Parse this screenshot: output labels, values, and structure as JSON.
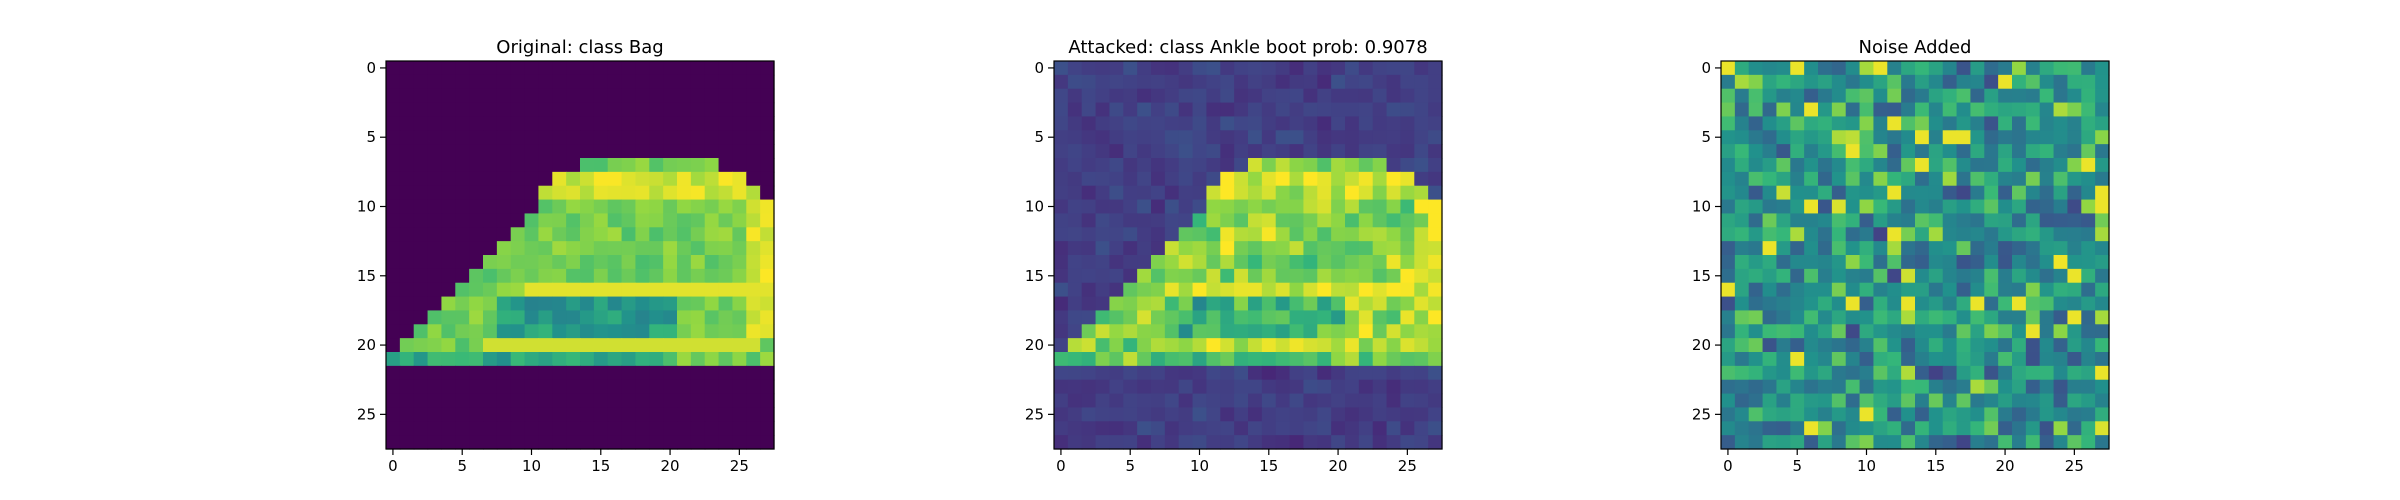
{
  "chart_data": [
    {
      "type": "heatmap",
      "title": "Original: class Bag",
      "image_shape": [
        28,
        28
      ],
      "colormap": "viridis",
      "xlim": [
        -0.5,
        27.5
      ],
      "ylim": [
        27.5,
        -0.5
      ],
      "x_ticks": [
        0,
        5,
        10,
        15,
        20,
        25
      ],
      "y_ticks": [
        0,
        5,
        10,
        15,
        20,
        25
      ],
      "x_tick_labels": [
        "0",
        "5",
        "10",
        "15",
        "20",
        "25"
      ],
      "y_tick_labels": [
        "0",
        "5",
        "10",
        "15",
        "20",
        "25"
      ],
      "description_values": "pixel intensities; dark background (0) with a bag-shaped bright region (rows 7-21)"
    },
    {
      "type": "heatmap",
      "title": "Attacked: class Ankle boot prob: 0.9078",
      "image_shape": [
        28,
        28
      ],
      "colormap": "viridis",
      "xlim": [
        -0.5,
        27.5
      ],
      "ylim": [
        27.5,
        -0.5
      ],
      "x_ticks": [
        0,
        5,
        10,
        15,
        20,
        25
      ],
      "y_ticks": [
        0,
        5,
        10,
        15,
        20,
        25
      ],
      "x_tick_labels": [
        "0",
        "5",
        "10",
        "15",
        "20",
        "25"
      ],
      "y_tick_labels": [
        "0",
        "5",
        "10",
        "15",
        "20",
        "25"
      ]
    },
    {
      "type": "heatmap",
      "title": "Noise Added",
      "image_shape": [
        28,
        28
      ],
      "colormap": "viridis",
      "xlim": [
        -0.5,
        27.5
      ],
      "ylim": [
        27.5,
        -0.5
      ],
      "x_ticks": [
        0,
        5,
        10,
        15,
        20,
        25
      ],
      "y_ticks": [
        0,
        5,
        10,
        15,
        20,
        25
      ],
      "x_tick_labels": [
        "0",
        "5",
        "10",
        "15",
        "20",
        "25"
      ],
      "y_tick_labels": [
        "0",
        "5",
        "10",
        "15",
        "20",
        "25"
      ]
    }
  ]
}
